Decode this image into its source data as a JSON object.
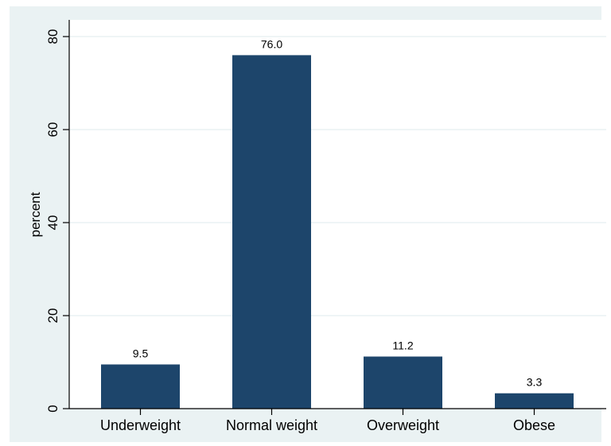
{
  "chart_data": {
    "type": "bar",
    "categories": [
      "Underweight",
      "Normal weight",
      "Overweight",
      "Obese"
    ],
    "values": [
      9.5,
      76.0,
      11.2,
      3.3
    ],
    "value_labels": [
      "9.5",
      "76.0",
      "11.2",
      "3.3"
    ],
    "ylabel": "percent",
    "ylim": [
      0,
      80
    ],
    "yticks": [
      0,
      20,
      40,
      60,
      80
    ],
    "ytick_labels": [
      "0",
      "20",
      "40",
      "60",
      "80"
    ],
    "grid": true,
    "legend": "none",
    "colors": {
      "bar": "#1d456b",
      "plot_bg": "#ffffff",
      "outer_bg": "#eaf2f3",
      "grid": "#eaf2f3",
      "axis": "#000000"
    }
  }
}
